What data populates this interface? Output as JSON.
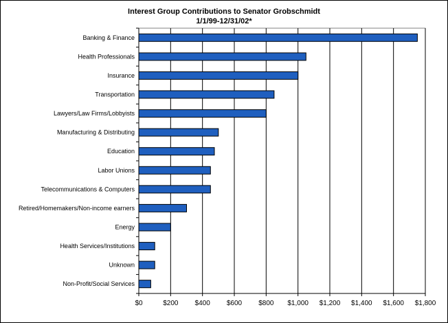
{
  "chart_data": {
    "type": "bar",
    "orientation": "horizontal",
    "title": "Interest Group Contributions to Senator Grobschmidt",
    "subtitle": "1/1/99-12/31/02*",
    "categories": [
      "Banking & Finance",
      "Health Professionals",
      "Insurance",
      "Transportation",
      "Lawyers/Law Firms/Lobbyists",
      "Manufacturing & Distributing",
      "Education",
      "Labor Unions",
      "Telecommunications & Computers",
      "Retired/Homemakers/Non-income earners",
      "Energy",
      "Health Services/Institutions",
      "Unknown",
      "Non-Profit/Social Services"
    ],
    "values": [
      1750,
      1050,
      1000,
      850,
      800,
      500,
      475,
      450,
      450,
      300,
      200,
      100,
      100,
      75
    ],
    "xlim": [
      0,
      1800
    ],
    "xticks": [
      "$0",
      "$200",
      "$400",
      "$600",
      "$800",
      "$1,000",
      "$1,200",
      "$1,400",
      "$1,600",
      "$1,800"
    ],
    "bar_color": "#1f5fbf",
    "grid": "vertical"
  }
}
